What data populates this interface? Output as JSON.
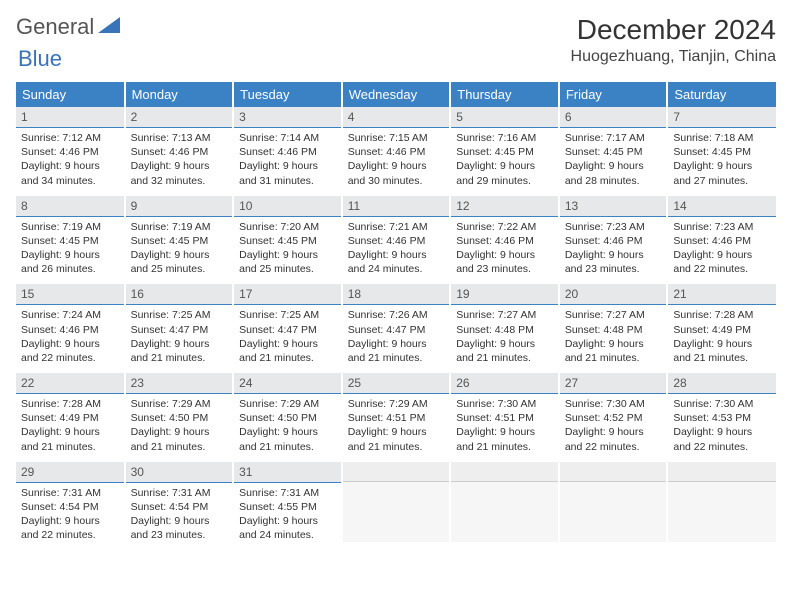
{
  "logo": {
    "part1": "General",
    "part2": "Blue"
  },
  "title": "December 2024",
  "location": "Huogezhuang, Tianjin, China",
  "colors": {
    "header_bg": "#3a82c4",
    "header_text": "#ffffff",
    "daynum_bg": "#e7e8e9",
    "daynum_border": "#3a82c4",
    "body_text": "#333333",
    "empty_bg": "#f6f6f6",
    "logo_gray": "#555555",
    "logo_blue": "#3a74b8"
  },
  "weekdays": [
    "Sunday",
    "Monday",
    "Tuesday",
    "Wednesday",
    "Thursday",
    "Friday",
    "Saturday"
  ],
  "layout": {
    "first_weekday_index": 0,
    "days_in_month": 31,
    "weeks": 5,
    "cols": 7
  },
  "days": [
    {
      "n": 1,
      "sunrise": "7:12 AM",
      "sunset": "4:46 PM",
      "dl_h": 9,
      "dl_m": 34
    },
    {
      "n": 2,
      "sunrise": "7:13 AM",
      "sunset": "4:46 PM",
      "dl_h": 9,
      "dl_m": 32
    },
    {
      "n": 3,
      "sunrise": "7:14 AM",
      "sunset": "4:46 PM",
      "dl_h": 9,
      "dl_m": 31
    },
    {
      "n": 4,
      "sunrise": "7:15 AM",
      "sunset": "4:46 PM",
      "dl_h": 9,
      "dl_m": 30
    },
    {
      "n": 5,
      "sunrise": "7:16 AM",
      "sunset": "4:45 PM",
      "dl_h": 9,
      "dl_m": 29
    },
    {
      "n": 6,
      "sunrise": "7:17 AM",
      "sunset": "4:45 PM",
      "dl_h": 9,
      "dl_m": 28
    },
    {
      "n": 7,
      "sunrise": "7:18 AM",
      "sunset": "4:45 PM",
      "dl_h": 9,
      "dl_m": 27
    },
    {
      "n": 8,
      "sunrise": "7:19 AM",
      "sunset": "4:45 PM",
      "dl_h": 9,
      "dl_m": 26
    },
    {
      "n": 9,
      "sunrise": "7:19 AM",
      "sunset": "4:45 PM",
      "dl_h": 9,
      "dl_m": 25
    },
    {
      "n": 10,
      "sunrise": "7:20 AM",
      "sunset": "4:45 PM",
      "dl_h": 9,
      "dl_m": 25
    },
    {
      "n": 11,
      "sunrise": "7:21 AM",
      "sunset": "4:46 PM",
      "dl_h": 9,
      "dl_m": 24
    },
    {
      "n": 12,
      "sunrise": "7:22 AM",
      "sunset": "4:46 PM",
      "dl_h": 9,
      "dl_m": 23
    },
    {
      "n": 13,
      "sunrise": "7:23 AM",
      "sunset": "4:46 PM",
      "dl_h": 9,
      "dl_m": 23
    },
    {
      "n": 14,
      "sunrise": "7:23 AM",
      "sunset": "4:46 PM",
      "dl_h": 9,
      "dl_m": 22
    },
    {
      "n": 15,
      "sunrise": "7:24 AM",
      "sunset": "4:46 PM",
      "dl_h": 9,
      "dl_m": 22
    },
    {
      "n": 16,
      "sunrise": "7:25 AM",
      "sunset": "4:47 PM",
      "dl_h": 9,
      "dl_m": 21
    },
    {
      "n": 17,
      "sunrise": "7:25 AM",
      "sunset": "4:47 PM",
      "dl_h": 9,
      "dl_m": 21
    },
    {
      "n": 18,
      "sunrise": "7:26 AM",
      "sunset": "4:47 PM",
      "dl_h": 9,
      "dl_m": 21
    },
    {
      "n": 19,
      "sunrise": "7:27 AM",
      "sunset": "4:48 PM",
      "dl_h": 9,
      "dl_m": 21
    },
    {
      "n": 20,
      "sunrise": "7:27 AM",
      "sunset": "4:48 PM",
      "dl_h": 9,
      "dl_m": 21
    },
    {
      "n": 21,
      "sunrise": "7:28 AM",
      "sunset": "4:49 PM",
      "dl_h": 9,
      "dl_m": 21
    },
    {
      "n": 22,
      "sunrise": "7:28 AM",
      "sunset": "4:49 PM",
      "dl_h": 9,
      "dl_m": 21
    },
    {
      "n": 23,
      "sunrise": "7:29 AM",
      "sunset": "4:50 PM",
      "dl_h": 9,
      "dl_m": 21
    },
    {
      "n": 24,
      "sunrise": "7:29 AM",
      "sunset": "4:50 PM",
      "dl_h": 9,
      "dl_m": 21
    },
    {
      "n": 25,
      "sunrise": "7:29 AM",
      "sunset": "4:51 PM",
      "dl_h": 9,
      "dl_m": 21
    },
    {
      "n": 26,
      "sunrise": "7:30 AM",
      "sunset": "4:51 PM",
      "dl_h": 9,
      "dl_m": 21
    },
    {
      "n": 27,
      "sunrise": "7:30 AM",
      "sunset": "4:52 PM",
      "dl_h": 9,
      "dl_m": 22
    },
    {
      "n": 28,
      "sunrise": "7:30 AM",
      "sunset": "4:53 PM",
      "dl_h": 9,
      "dl_m": 22
    },
    {
      "n": 29,
      "sunrise": "7:31 AM",
      "sunset": "4:54 PM",
      "dl_h": 9,
      "dl_m": 22
    },
    {
      "n": 30,
      "sunrise": "7:31 AM",
      "sunset": "4:54 PM",
      "dl_h": 9,
      "dl_m": 23
    },
    {
      "n": 31,
      "sunrise": "7:31 AM",
      "sunset": "4:55 PM",
      "dl_h": 9,
      "dl_m": 24
    }
  ],
  "labels": {
    "sunrise": "Sunrise:",
    "sunset": "Sunset:",
    "daylight_prefix": "Daylight:",
    "hours_word": "hours",
    "and_word": "and",
    "minutes_word": "minutes."
  }
}
